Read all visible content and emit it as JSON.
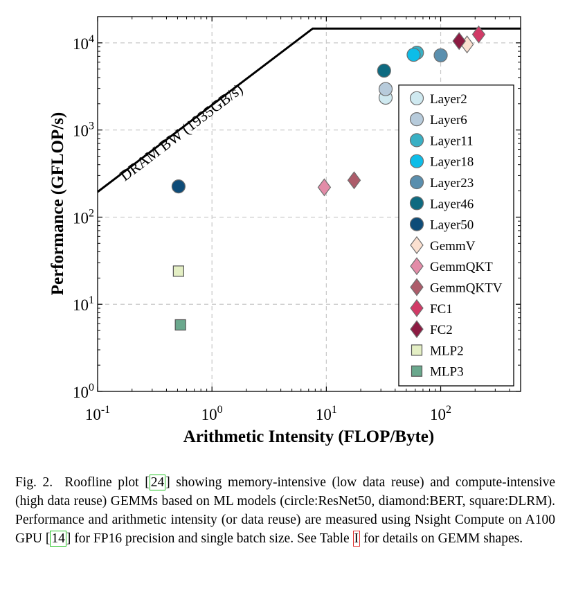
{
  "chart_data": {
    "type": "scatter",
    "xscale": "log",
    "yscale": "log",
    "xlim": [
      0.1,
      500
    ],
    "ylim": [
      1,
      20000
    ],
    "grid": true,
    "xlabel": "Arithmetic Intensity (FLOP/Byte)",
    "ylabel": "Performance (GFLOP/s)",
    "xticks": [
      {
        "value": 0.1,
        "base": "10",
        "exp": "-1"
      },
      {
        "value": 1,
        "base": "10",
        "exp": "0"
      },
      {
        "value": 10,
        "base": "10",
        "exp": "1"
      },
      {
        "value": 100,
        "base": "10",
        "exp": "2"
      }
    ],
    "yticks": [
      {
        "value": 1,
        "base": "10",
        "exp": "0"
      },
      {
        "value": 10,
        "base": "10",
        "exp": "1"
      },
      {
        "value": 100,
        "base": "10",
        "exp": "2"
      },
      {
        "value": 1000,
        "base": "10",
        "exp": "3"
      },
      {
        "value": 10000,
        "base": "10",
        "exp": "4"
      }
    ],
    "roofline": {
      "label": "DRAM BW (1935GB/s)",
      "bandwidth_gbs": 1935,
      "peak_gflops": 14600,
      "points": [
        [
          0.1,
          195
        ],
        [
          7.6,
          14600
        ],
        [
          500,
          14600
        ]
      ]
    },
    "legend_position": "lower-right",
    "series": [
      {
        "name": "Layer2",
        "marker": "circle",
        "color": "#cfe9f0",
        "points": [
          [
            33,
            2350
          ]
        ]
      },
      {
        "name": "Layer6",
        "marker": "circle",
        "color": "#b7cbdb",
        "points": [
          [
            33,
            2950
          ]
        ]
      },
      {
        "name": "Layer11",
        "marker": "circle",
        "color": "#39b0c4",
        "points": [
          [
            62,
            7700
          ]
        ]
      },
      {
        "name": "Layer18",
        "marker": "circle",
        "color": "#0dbde8",
        "points": [
          [
            58,
            7300
          ]
        ]
      },
      {
        "name": "Layer23",
        "marker": "circle",
        "color": "#5a8fae",
        "points": [
          [
            100,
            7200
          ]
        ]
      },
      {
        "name": "Layer46",
        "marker": "circle",
        "color": "#0e6a80",
        "points": [
          [
            32,
            4800
          ]
        ]
      },
      {
        "name": "Layer50",
        "marker": "circle",
        "color": "#0e4c78",
        "points": [
          [
            0.51,
            225
          ]
        ]
      },
      {
        "name": "GemmV",
        "marker": "diamond",
        "color": "#fbe0d0",
        "points": [
          [
            170,
            9600
          ]
        ]
      },
      {
        "name": "GemmQKT",
        "marker": "diamond",
        "color": "#e38ca8",
        "points": [
          [
            9.6,
            220
          ]
        ]
      },
      {
        "name": "GemmQKTV",
        "marker": "diamond",
        "color": "#ad5c6a",
        "points": [
          [
            17.5,
            265
          ]
        ]
      },
      {
        "name": "FC1",
        "marker": "diamond",
        "color": "#d13a66",
        "points": [
          [
            215,
            12500
          ]
        ]
      },
      {
        "name": "FC2",
        "marker": "diamond",
        "color": "#8c1b42",
        "points": [
          [
            145,
            10500
          ]
        ]
      },
      {
        "name": "MLP2",
        "marker": "square",
        "color": "#e4efc4",
        "points": [
          [
            0.51,
            24
          ]
        ]
      },
      {
        "name": "MLP3",
        "marker": "square",
        "color": "#6aa88d",
        "points": [
          [
            0.53,
            5.8
          ]
        ]
      }
    ]
  },
  "caption": {
    "fig_label": "Fig. 2.",
    "text_1": "Roofline plot",
    "ref_1": "24",
    "text_2": "showing memory-intensive (low data reuse) and compute-intensive (high data reuse) GEMMs based on ML models (circle:ResNet50, diamond:BERT, square:DLRM). Performance and arithmetic intensity (or data reuse) are measured using Nsight Compute on A100 GPU",
    "ref_2": "14",
    "text_3": "for FP16 precision and single batch size. See Table",
    "ref_3": "I",
    "text_4": "for details on GEMM shapes."
  }
}
